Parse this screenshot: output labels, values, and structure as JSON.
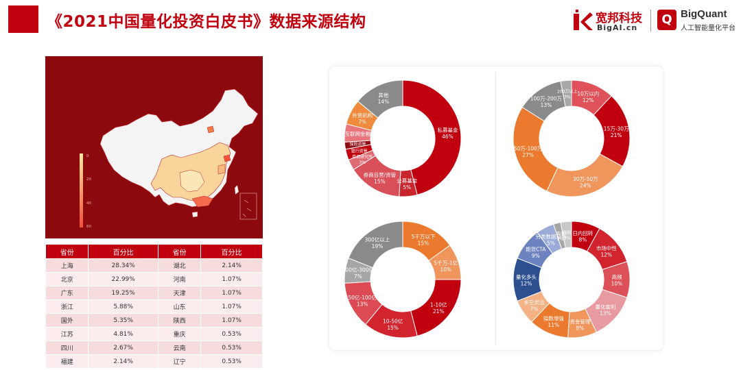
{
  "header": {
    "title": "《2021中国量化投资白皮书》数据来源结构",
    "brand_cn": "宽邦科技",
    "brand_en": "BigAI.cn",
    "bq_icon": "Q",
    "bq_name": "BigQuant",
    "bq_tag": "人工智能量化平台",
    "colors": {
      "accent": "#c0000e",
      "map_bg": "#8c0a0d"
    }
  },
  "map": {
    "legend_ticks": [
      "0",
      "20",
      "40",
      "60"
    ],
    "legend_colors": [
      "#fbe7a0",
      "#f2503a"
    ]
  },
  "table": {
    "headers": [
      "省份",
      "百分比",
      "省份",
      "百分比"
    ],
    "rows": [
      [
        "上海",
        "28.34%",
        "湖北",
        "2.14%"
      ],
      [
        "北京",
        "22.99%",
        "河南",
        "1.07%"
      ],
      [
        "广东",
        "19.25%",
        "天津",
        "1.07%"
      ],
      [
        "浙江",
        "5.88%",
        "山东",
        "1.07%"
      ],
      [
        "国外",
        "5.35%",
        "陕西",
        "1.07%"
      ],
      [
        "江苏",
        "4.81%",
        "重庆",
        "0.53%"
      ],
      [
        "四川",
        "2.67%",
        "云南",
        "0.53%"
      ],
      [
        "福建",
        "2.14%",
        "辽宁",
        "0.53%"
      ]
    ]
  },
  "chart_data": [
    {
      "type": "pie",
      "slices": [
        {
          "label": "私募基金",
          "value": 46,
          "text": "46%",
          "color": "#c1000f"
        },
        {
          "label": "公募基金",
          "value": 5,
          "text": "5%",
          "color": "#c9252d"
        },
        {
          "label": "券商自营/资管",
          "value": 15,
          "text": "15%",
          "color": "#d9505a"
        },
        {
          "label": "券商研究所",
          "value": 3,
          "text": "3%",
          "color": "#e06a72"
        },
        {
          "label": "银行资管",
          "value": 3,
          "text": "",
          "color": "#c0000e"
        },
        {
          "label": "保险资管",
          "value": 2,
          "text": "",
          "color": "#8e0c12"
        },
        {
          "label": "互联网金融",
          "value": 5,
          "text": "",
          "color": "#e8747c"
        },
        {
          "label": "外资机构",
          "value": 7,
          "text": "7%",
          "color": "#f08a3c"
        },
        {
          "label": "其他",
          "value": 14,
          "text": "14%",
          "color": "#8a8a8a"
        }
      ]
    },
    {
      "type": "pie",
      "slices": [
        {
          "label": "10万以内",
          "value": 12,
          "text": "12%",
          "color": "#e0525a"
        },
        {
          "label": "15万-30万",
          "value": 21,
          "text": "21%",
          "color": "#c1000f"
        },
        {
          "label": "30万-50万",
          "value": 24,
          "text": "24%",
          "color": "#f0955c"
        },
        {
          "label": "50万-100万",
          "value": 27,
          "text": "27%",
          "color": "#ec7a2e"
        },
        {
          "label": "100万-200万",
          "value": 13,
          "text": "13%",
          "color": "#8a8a8a"
        },
        {
          "label": "200万以上",
          "value": 3,
          "text": "3%",
          "color": "#a8a8a8"
        }
      ]
    },
    {
      "type": "pie",
      "slices": [
        {
          "label": "5千万以下",
          "value": 15,
          "text": "15%",
          "color": "#ec7a2e"
        },
        {
          "label": "5千万-1亿",
          "value": 10,
          "text": "10%",
          "color": "#f0955c"
        },
        {
          "label": "1-10亿",
          "value": 21,
          "text": "21%",
          "color": "#c1000f"
        },
        {
          "label": "10-50亿",
          "value": 15,
          "text": "15%",
          "color": "#d1242e"
        },
        {
          "label": "50亿-100亿",
          "value": 13,
          "text": "13%",
          "color": "#dc4a53"
        },
        {
          "label": "100亿-300亿",
          "value": 7,
          "text": "7%",
          "color": "#a6a6a6"
        },
        {
          "label": "300亿以上",
          "value": 19,
          "text": "19%",
          "color": "#8a8a8a"
        }
      ]
    },
    {
      "type": "pie",
      "slices": [
        {
          "label": "日内回转",
          "value": 8,
          "text": "8%",
          "color": "#c1000f"
        },
        {
          "label": "市场中性",
          "value": 12,
          "text": "12%",
          "color": "#d1242e"
        },
        {
          "label": "高频",
          "value": 10,
          "text": "10%",
          "color": "#dc5158"
        },
        {
          "label": "量化套利",
          "value": 13,
          "text": "13%",
          "color": "#e89aa0"
        },
        {
          "label": "资金管理",
          "value": 8,
          "text": "8%",
          "color": "#f0955c"
        },
        {
          "label": "指数增强",
          "value": 11,
          "text": "11%",
          "color": "#ec7a2e"
        },
        {
          "label": "多空灵活",
          "value": 7,
          "text": "7%",
          "color": "#f4b184"
        },
        {
          "label": "量化多头",
          "value": 12,
          "text": "12%",
          "color": "#2e4f8f"
        },
        {
          "label": "期货CTA",
          "value": 9,
          "text": "9%",
          "color": "#6d83c0"
        },
        {
          "label": "另类数据投研",
          "value": 5,
          "text": "5%",
          "color": "#9aabd8"
        },
        {
          "label": "其他",
          "value": 2,
          "text": "2%",
          "color": "#a6a6a6"
        },
        {
          "label": "期权",
          "value": 3,
          "text": "3%",
          "color": "#c8c8c8"
        }
      ]
    }
  ]
}
